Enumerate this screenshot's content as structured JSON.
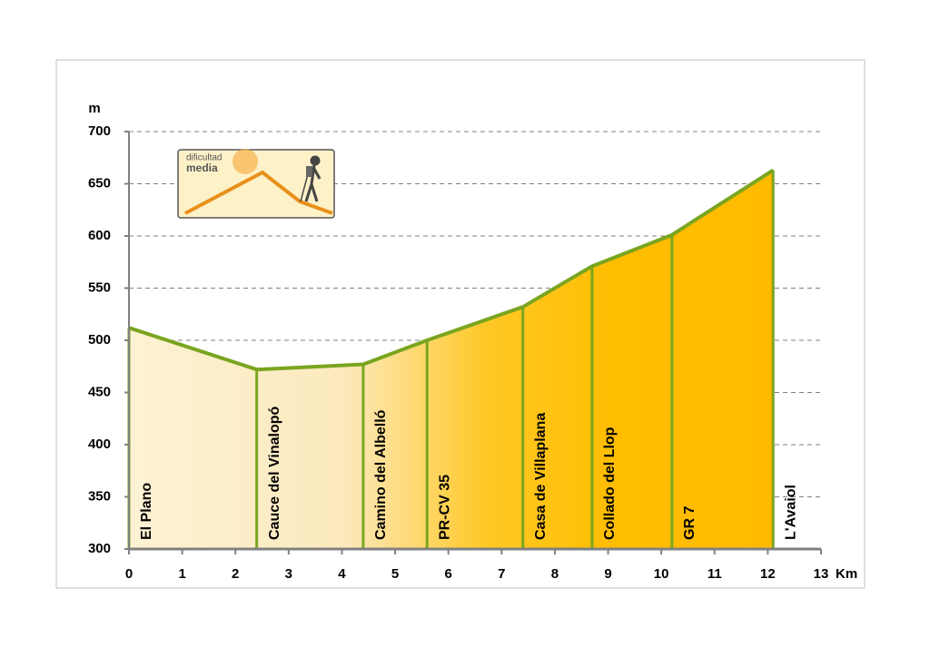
{
  "chart_data": {
    "type": "area",
    "y_label": "m",
    "x_label": "Km",
    "x": [
      0,
      2.4,
      4.4,
      5.6,
      7.4,
      8.7,
      10.2,
      12.1
    ],
    "values": [
      512,
      472,
      477,
      500,
      532,
      571,
      601,
      663
    ],
    "point_labels": [
      "El Plano",
      "Cauce del Vinalopó",
      "Camino del Albelló",
      "PR-CV 35",
      "Casa de Villaplana",
      "Collado del Llop",
      "GR 7",
      "L'Avaiol"
    ],
    "color": "#7aa51f",
    "xlim": [
      0,
      13
    ],
    "xticks": [
      0,
      1,
      2,
      3,
      4,
      5,
      6,
      7,
      8,
      9,
      10,
      11,
      12,
      13
    ],
    "ylim": [
      300,
      700
    ],
    "yticks": [
      300,
      350,
      400,
      450,
      500,
      550,
      600,
      650,
      700
    ],
    "grid": true
  },
  "badge": {
    "line1": "dificultad",
    "line2": "media"
  }
}
